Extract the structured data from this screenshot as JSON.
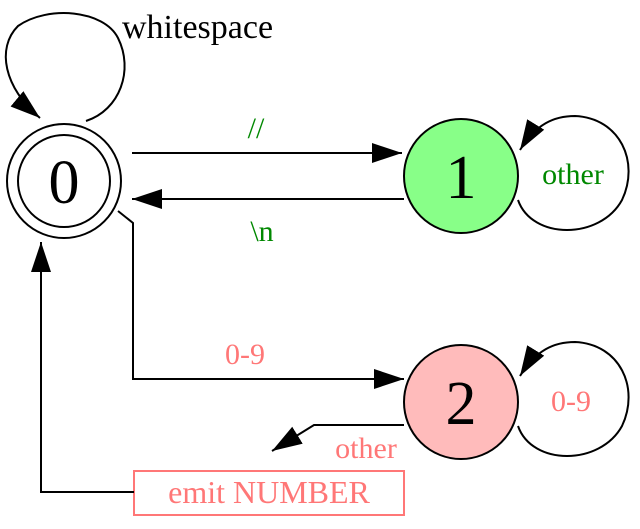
{
  "states": {
    "s0": {
      "label": "0"
    },
    "s1": {
      "label": "1"
    },
    "s2": {
      "label": "2"
    }
  },
  "transitions": {
    "whitespace": "whitespace",
    "comment_start": "//",
    "comment_other": "other",
    "newline": "\\n",
    "digit_start": "0-9",
    "digit_loop": "0-9",
    "number_other": "other"
  },
  "action": {
    "label": "emit NUMBER"
  },
  "colors": {
    "s1_fill": "#88ff88",
    "s2_fill": "#ffbbbb",
    "comment_text": "#008800",
    "number_text": "#ff7777",
    "line": "#000000"
  },
  "icons": {
    "arrowhead": "filled-triangle"
  }
}
